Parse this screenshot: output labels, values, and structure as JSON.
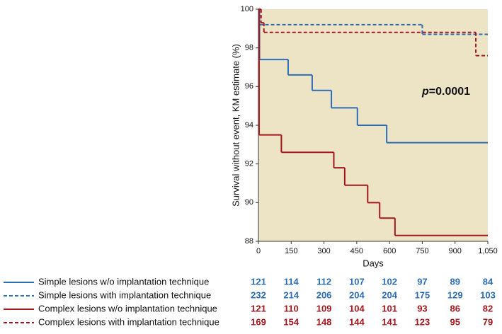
{
  "chart_data": {
    "type": "step",
    "ylabel": "Survival without event, KM estimate (%)",
    "xlabel": "Days",
    "annotation_symbol": "p",
    "annotation": "=0.0001",
    "xlim": [
      0,
      1050
    ],
    "ylim": [
      88,
      100
    ],
    "xticks": [
      0,
      150,
      300,
      450,
      600,
      750,
      900,
      {
        "value": 1050,
        "label": "1,050"
      }
    ],
    "yticks": [
      88,
      90,
      92,
      94,
      96,
      98,
      100
    ],
    "background": "#ede4c6",
    "series": [
      {
        "name": "Simple lesions w/o implantation technique",
        "color": "#2c6db5",
        "dash": false,
        "x": [
          0,
          5,
          136,
          246,
          334,
          447,
          453,
          587
        ],
        "values": [
          100,
          97.4,
          96.6,
          95.8,
          94.9,
          94.9,
          94.0,
          93.1
        ],
        "at_risk": [
          121,
          114,
          112,
          107,
          102,
          97,
          89,
          84
        ]
      },
      {
        "name": "Simple lesions with implantation technique",
        "color": "#2c6db5",
        "dash": true,
        "x": [
          0,
          5,
          750
        ],
        "values": [
          100,
          99.2,
          98.7
        ],
        "at_risk": [
          232,
          214,
          206,
          204,
          204,
          175,
          129,
          103
        ]
      },
      {
        "name": "Complex lesions w/o implantation technique",
        "color": "#a3171f",
        "dash": false,
        "x": [
          0,
          3,
          105,
          345,
          395,
          500,
          555,
          625
        ],
        "values": [
          100,
          93.5,
          92.6,
          91.8,
          90.9,
          90.0,
          89.2,
          88.3
        ],
        "at_risk": [
          121,
          110,
          109,
          104,
          101,
          93,
          86,
          82
        ]
      },
      {
        "name": "Complex lesions with implantation technique",
        "color": "#a3171f",
        "dash": true,
        "x": [
          0,
          12,
          25,
          995
        ],
        "values": [
          100,
          99.3,
          98.8,
          97.6
        ],
        "at_risk": [
          169,
          154,
          148,
          144,
          141,
          123,
          95,
          79
        ]
      }
    ]
  }
}
